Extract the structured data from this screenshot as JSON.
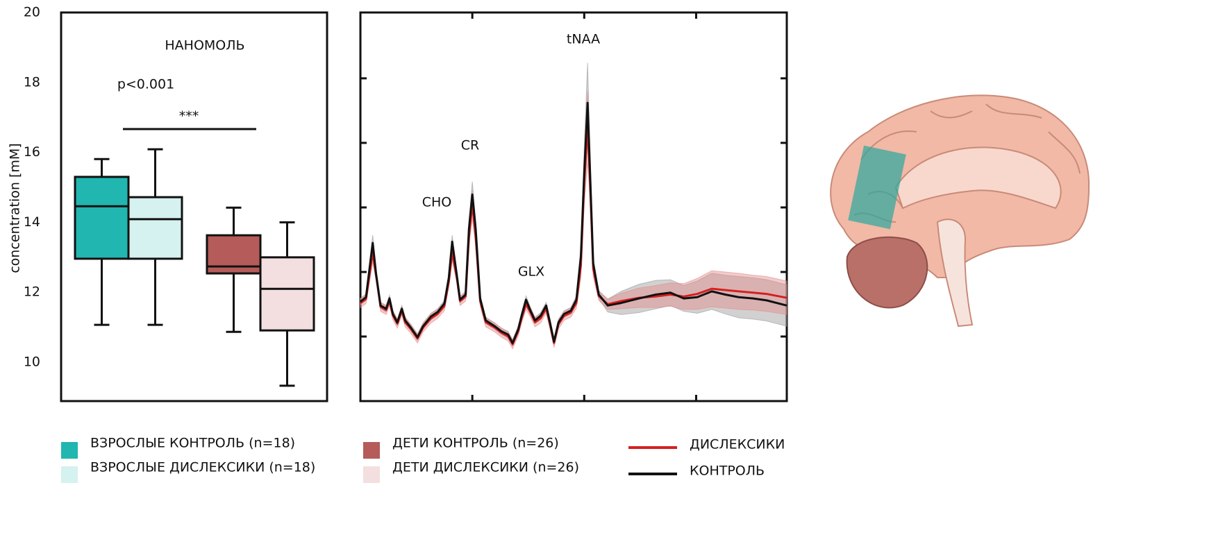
{
  "chart_data": [
    {
      "type": "box",
      "title": "НАНОМОЛЬ",
      "y_label": "concentration [mM]",
      "annotations": [
        "p<0.001",
        "***"
      ],
      "ylim": [
        8.89,
        20
      ],
      "yticks": [
        10,
        12,
        14,
        16,
        18,
        20
      ],
      "series": [
        {
          "name": "ВЗРОСЛЫЕ КОНТРОЛЬ (n=18)",
          "color": "#21b6b0",
          "min": 11.07,
          "q1": 12.96,
          "median": 14.46,
          "q3": 15.3,
          "max": 15.81
        },
        {
          "name": "ВЗРОСЛЫЕ ДИСЛЕКСИКИ (n=18)",
          "color": "#d5f1f0",
          "min": 11.07,
          "q1": 12.96,
          "median": 14.09,
          "q3": 14.72,
          "max": 16.09
        },
        {
          "name": "ДЕТИ КОНТРОЛЬ (n=26)",
          "color": "#b55b59",
          "min": 10.87,
          "q1": 12.54,
          "median": 12.74,
          "q3": 13.63,
          "max": 14.42
        },
        {
          "name": "ДЕТИ ДИСЛЕКСИКИ (n=26)",
          "color": "#f3dfdf",
          "min": 9.33,
          "q1": 10.91,
          "median": 12.1,
          "q3": 13.0,
          "max": 14.0
        }
      ]
    },
    {
      "type": "line",
      "annotations": [
        "tNAA",
        "CR",
        "CHO",
        "GLX"
      ],
      "xlim": [
        0,
        3.81
      ],
      "ylim": [
        0,
        6.02
      ],
      "xticks": [
        1,
        2,
        3
      ],
      "yticks": [
        1,
        2,
        3,
        4,
        5
      ],
      "x": [
        0,
        0.05,
        0.11,
        0.14,
        0.18,
        0.23,
        0.26,
        0.29,
        0.33,
        0.37,
        0.4,
        0.45,
        0.51,
        0.56,
        0.63,
        0.69,
        0.75,
        0.79,
        0.82,
        0.86,
        0.89,
        0.94,
        0.97,
        1.0,
        1.03,
        1.07,
        1.12,
        1.2,
        1.26,
        1.32,
        1.36,
        1.41,
        1.44,
        1.48,
        1.52,
        1.56,
        1.61,
        1.66,
        1.69,
        1.73,
        1.77,
        1.82,
        1.88,
        1.93,
        1.97,
        2.0,
        2.03,
        2.05,
        2.08,
        2.13,
        2.21,
        2.33,
        2.49,
        2.64,
        2.77,
        2.89,
        3.01,
        3.14,
        3.26,
        3.38,
        3.51,
        3.63,
        3.81
      ],
      "series": [
        {
          "name": "ДИСЛЕКСИКИ",
          "color": "#d42020",
          "band_color": "#e58a8a",
          "values": [
            1.52,
            1.58,
            2.3,
            1.95,
            1.46,
            1.41,
            1.55,
            1.33,
            1.2,
            1.4,
            1.22,
            1.12,
            0.97,
            1.14,
            1.28,
            1.35,
            1.47,
            1.85,
            2.3,
            1.93,
            1.55,
            1.62,
            2.55,
            3.05,
            2.55,
            1.55,
            1.22,
            1.14,
            1.06,
            1.0,
            0.88,
            1.08,
            1.28,
            1.5,
            1.37,
            1.22,
            1.28,
            1.43,
            1.22,
            0.9,
            1.19,
            1.32,
            1.37,
            1.52,
            2.1,
            3.4,
            4.25,
            3.5,
            2.05,
            1.63,
            1.5,
            1.55,
            1.6,
            1.62,
            1.65,
            1.62,
            1.66,
            1.74,
            1.72,
            1.7,
            1.68,
            1.66,
            1.6
          ],
          "error": [
            0.07,
            0.07,
            0.15,
            0.08,
            0.07,
            0.07,
            0.07,
            0.07,
            0.07,
            0.07,
            0.07,
            0.07,
            0.07,
            0.07,
            0.07,
            0.07,
            0.07,
            0.08,
            0.12,
            0.08,
            0.07,
            0.07,
            0.15,
            0.22,
            0.15,
            0.07,
            0.07,
            0.07,
            0.07,
            0.07,
            0.07,
            0.07,
            0.07,
            0.08,
            0.07,
            0.07,
            0.07,
            0.07,
            0.07,
            0.07,
            0.07,
            0.07,
            0.07,
            0.08,
            0.18,
            0.35,
            0.55,
            0.35,
            0.12,
            0.07,
            0.08,
            0.12,
            0.15,
            0.17,
            0.18,
            0.2,
            0.24,
            0.28,
            0.28,
            0.28,
            0.27,
            0.27,
            0.26
          ]
        },
        {
          "name": "КОНТРОЛЬ",
          "color": "#111111",
          "band_color": "#9a9a9a",
          "values": [
            1.54,
            1.61,
            2.45,
            1.97,
            1.48,
            1.43,
            1.59,
            1.35,
            1.22,
            1.43,
            1.25,
            1.14,
            0.99,
            1.16,
            1.31,
            1.38,
            1.51,
            1.91,
            2.47,
            1.97,
            1.57,
            1.65,
            2.67,
            3.2,
            2.67,
            1.59,
            1.25,
            1.16,
            1.08,
            1.03,
            0.9,
            1.11,
            1.32,
            1.57,
            1.4,
            1.25,
            1.32,
            1.48,
            1.25,
            0.92,
            1.22,
            1.35,
            1.4,
            1.57,
            2.24,
            3.53,
            4.62,
            3.63,
            2.13,
            1.65,
            1.48,
            1.52,
            1.59,
            1.65,
            1.68,
            1.59,
            1.61,
            1.7,
            1.65,
            1.61,
            1.59,
            1.56,
            1.48
          ],
          "error": [
            0.05,
            0.05,
            0.12,
            0.06,
            0.05,
            0.05,
            0.05,
            0.05,
            0.05,
            0.05,
            0.05,
            0.05,
            0.05,
            0.05,
            0.05,
            0.05,
            0.05,
            0.06,
            0.1,
            0.06,
            0.05,
            0.05,
            0.12,
            0.2,
            0.12,
            0.05,
            0.05,
            0.05,
            0.05,
            0.05,
            0.05,
            0.05,
            0.05,
            0.06,
            0.05,
            0.05,
            0.05,
            0.05,
            0.05,
            0.05,
            0.05,
            0.05,
            0.05,
            0.06,
            0.15,
            0.4,
            0.62,
            0.4,
            0.1,
            0.06,
            0.1,
            0.18,
            0.22,
            0.22,
            0.2,
            0.2,
            0.25,
            0.28,
            0.3,
            0.32,
            0.32,
            0.32,
            0.32
          ]
        }
      ]
    }
  ]
}
